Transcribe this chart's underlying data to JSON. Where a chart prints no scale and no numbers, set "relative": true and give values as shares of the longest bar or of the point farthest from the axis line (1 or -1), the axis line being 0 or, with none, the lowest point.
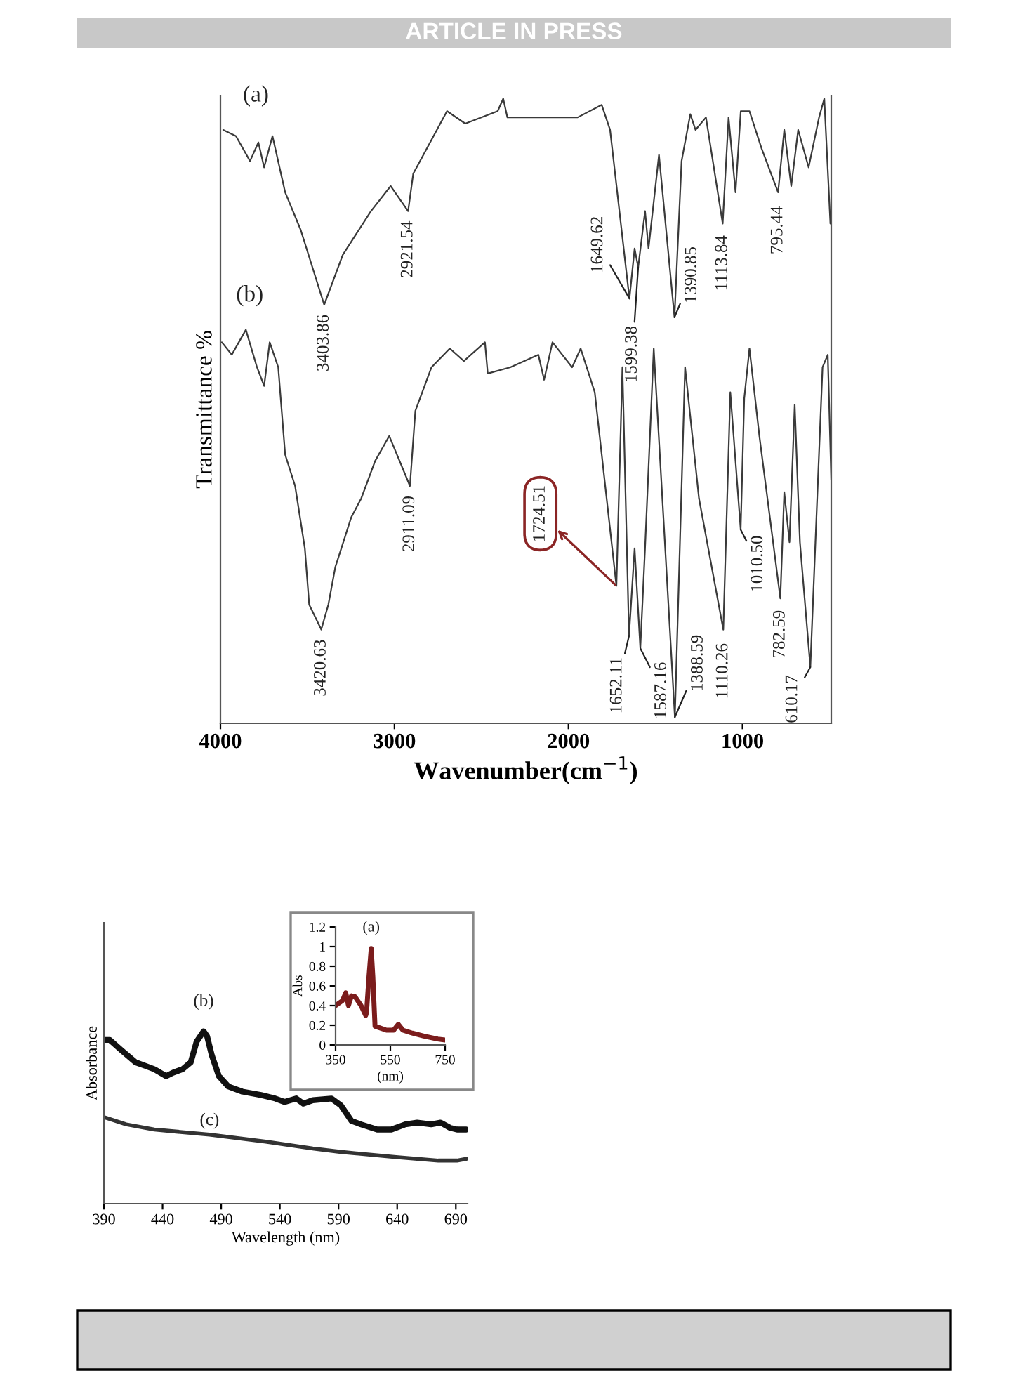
{
  "chart_data": [
    {
      "type": "line",
      "relative": true,
      "ylabel": "Transmittance %",
      "xlabel": "Wavenumber(cm$^{−1}$)",
      "xlim": [
        4000,
        490
      ],
      "xticks": [
        4000,
        3000,
        2000,
        1000
      ],
      "series": [
        {
          "name": "(a)",
          "color": "#3a3a3a",
          "x": [
            3984,
            3911,
            3830,
            3782,
            3749,
            3701,
            3628,
            3539,
            3403.86,
            3297,
            3135,
            3022,
            2921.54,
            2892,
            2698,
            2593,
            2407,
            2375,
            2351,
            1947,
            1809,
            1761,
            1649.62,
            1620,
            1599.38,
            1560,
            1540,
            1480,
            1390.85,
            1350,
            1300,
            1270,
            1210,
            1113.84,
            1080,
            1040,
            1010,
            960,
            890,
            795.44,
            760,
            720,
            680,
            620,
            560,
            530,
            495
          ],
          "values": [
            0.95,
            0.94,
            0.9,
            0.93,
            0.89,
            0.94,
            0.85,
            0.79,
            0.67,
            0.75,
            0.82,
            0.86,
            0.82,
            0.88,
            0.98,
            0.96,
            0.98,
            1.0,
            0.97,
            0.97,
            0.99,
            0.95,
            0.68,
            0.76,
            0.73,
            0.82,
            0.76,
            0.91,
            0.65,
            0.9,
            0.975,
            0.95,
            0.97,
            0.8,
            0.97,
            0.85,
            0.98,
            0.98,
            0.92,
            0.85,
            0.95,
            0.86,
            0.95,
            0.89,
            0.97,
            1.0,
            0.8
          ]
        },
        {
          "name": "(b)",
          "color": "#3a3a3a",
          "x": [
            3992,
            3935,
            3854,
            3790,
            3749,
            3717,
            3668,
            3628,
            3571,
            3515,
            3490,
            3420.63,
            3380,
            3340,
            3248,
            3191,
            3111,
            3030,
            2911.09,
            2880,
            2787,
            2682,
            2601,
            2480,
            2464,
            2334,
            2173,
            2140,
            2092,
            1979,
            1930,
            1849,
            1724.51,
            1690,
            1652.11,
            1620,
            1587.16,
            1560,
            1510,
            1388.59,
            1330,
            1250,
            1110.26,
            1070,
            1010.5,
            990,
            960,
            903,
            782.59,
            760,
            730,
            700,
            670,
            610.17,
            540,
            510,
            490
          ],
          "values": [
            0.61,
            0.59,
            0.63,
            0.57,
            0.54,
            0.61,
            0.57,
            0.43,
            0.38,
            0.28,
            0.19,
            0.15,
            0.19,
            0.25,
            0.33,
            0.36,
            0.42,
            0.46,
            0.38,
            0.5,
            0.57,
            0.6,
            0.58,
            0.61,
            0.56,
            0.57,
            0.59,
            0.55,
            0.61,
            0.57,
            0.6,
            0.53,
            0.22,
            0.57,
            0.14,
            0.28,
            0.12,
            0.28,
            0.6,
            0.01,
            0.57,
            0.36,
            0.15,
            0.53,
            0.31,
            0.52,
            0.6,
            0.46,
            0.2,
            0.37,
            0.29,
            0.51,
            0.29,
            0.09,
            0.57,
            0.59,
            0.39
          ]
        }
      ],
      "annotations": [
        "ARTICLE IN PRESS",
        {
          "text": "3403.86",
          "x": 3403.86,
          "y": 0.67
        },
        {
          "text": "2921.54",
          "x": 2921.54,
          "y": 0.82
        },
        {
          "text": "1649.62",
          "x": 1649.62,
          "y": 0.68
        },
        {
          "text": "1599.38",
          "x": 1599.38,
          "y": 0.73
        },
        {
          "text": "1390.85",
          "x": 1390.85,
          "y": 0.65
        },
        {
          "text": "1113.84",
          "x": 1113.84,
          "y": 0.8
        },
        {
          "text": "795.44",
          "x": 795.44,
          "y": 0.85
        },
        {
          "text": "3420.63",
          "x": 3420.63,
          "y": 0.15
        },
        {
          "text": "2911.09",
          "x": 2911.09,
          "y": 0.38
        },
        {
          "text": "1652.11",
          "x": 1652.11,
          "y": 0.14
        },
        {
          "text": "1587.16",
          "x": 1587.16,
          "y": 0.12
        },
        {
          "text": "1388.59",
          "x": 1388.59,
          "y": 0.01
        },
        {
          "text": "1110.26",
          "x": 1110.26,
          "y": 0.15
        },
        {
          "text": "1010.50",
          "x": 1010.5,
          "y": 0.31
        },
        {
          "text": "782.59",
          "x": 782.59,
          "y": 0.2
        },
        {
          "text": "610.17",
          "x": 610.17,
          "y": 0.09
        },
        {
          "text": "1724.51",
          "x": 1724.51,
          "y": 0.22
        }
      ]
    },
    {
      "type": "line",
      "relative": true,
      "ylabel": "Absorbance",
      "xlabel": "Wavelength (nm)",
      "xlim": [
        390,
        700
      ],
      "xticks": [
        390,
        440,
        490,
        540,
        590,
        640,
        690
      ],
      "series": [
        {
          "name": "(b)",
          "color": "#111111",
          "x": [
            391,
            395,
            405,
            417,
            425,
            433,
            443,
            449,
            457,
            464,
            469,
            475,
            478,
            482,
            488,
            496,
            508,
            524,
            536,
            544,
            554,
            560,
            568,
            584,
            592,
            601,
            609,
            623,
            635,
            647,
            657,
            669,
            677,
            685,
            691,
            699
          ],
          "values": [
            0.95,
            0.95,
            0.89,
            0.82,
            0.8,
            0.78,
            0.74,
            0.76,
            0.78,
            0.82,
            0.94,
            1.0,
            0.97,
            0.86,
            0.74,
            0.68,
            0.65,
            0.63,
            0.61,
            0.59,
            0.61,
            0.58,
            0.6,
            0.61,
            0.57,
            0.48,
            0.46,
            0.43,
            0.43,
            0.46,
            0.47,
            0.46,
            0.47,
            0.44,
            0.43,
            0.43
          ]
        },
        {
          "name": "(c)",
          "color": "#333333",
          "x": [
            391,
            409,
            433,
            480,
            528,
            568,
            592,
            639,
            675,
            691,
            699
          ],
          "values": [
            0.5,
            0.46,
            0.43,
            0.4,
            0.36,
            0.32,
            0.3,
            0.27,
            0.25,
            0.25,
            0.26
          ]
        }
      ]
    },
    {
      "type": "line",
      "ylabel": "Abs",
      "xlabel": "(nm)",
      "xlim": [
        350,
        750
      ],
      "xticks": [
        350,
        550,
        750
      ],
      "ylim": [
        0,
        1.2
      ],
      "yticks": [
        0,
        0.2,
        0.4,
        0.6,
        0.8,
        1,
        1.2
      ],
      "series": [
        {
          "name": "(a)",
          "color": "#7b1c1c",
          "x": [
            350,
            375,
            387,
            397,
            408,
            421,
            443,
            460,
            463,
            472,
            480,
            486,
            494,
            536,
            562,
            579,
            596,
            630,
            672,
            723,
            750
          ],
          "values": [
            0.4,
            0.45,
            0.53,
            0.4,
            0.5,
            0.49,
            0.4,
            0.3,
            0.33,
            0.7,
            0.98,
            0.7,
            0.19,
            0.15,
            0.15,
            0.21,
            0.15,
            0.12,
            0.09,
            0.06,
            0.05
          ]
        }
      ]
    }
  ]
}
